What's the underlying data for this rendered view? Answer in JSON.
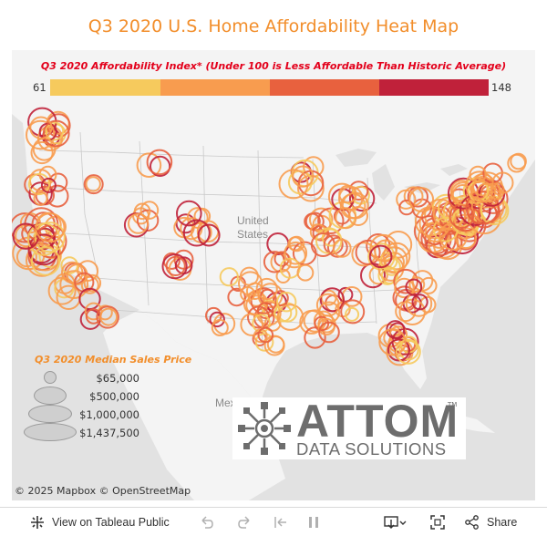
{
  "title": "Q3 2020 U.S. Home Affordability Heat Map",
  "color_legend": {
    "title": "Q3 2020 Affordability Index* (Under 100 is Less Affordable Than Historic Average)",
    "min_label": "61",
    "max_label": "148",
    "colors": [
      "#f6ca5d",
      "#f89c4f",
      "#e8613e",
      "#c0213a"
    ]
  },
  "size_legend": {
    "title": "Q3 2020 Median Sales Price",
    "items": [
      {
        "label": "$65,000"
      },
      {
        "label": "$500,000"
      },
      {
        "label": "$1,000,000"
      },
      {
        "label": "$1,437,500"
      }
    ]
  },
  "map": {
    "country_label_1": "United",
    "country_label_2": "States",
    "mexico_label": "Mex",
    "credits": "© 2025 Mapbox  © OpenStreetMap",
    "colors": {
      "low": "#f6ca5d",
      "mid": "#f89c4f",
      "high": "#e8613e",
      "top": "#c0213a"
    }
  },
  "logo": {
    "name": "ATTOM",
    "tagline": "DATA SOLUTIONS",
    "tm": "TM"
  },
  "toolbar": {
    "view_on_tableau": "View on Tableau Public",
    "share": "Share"
  }
}
